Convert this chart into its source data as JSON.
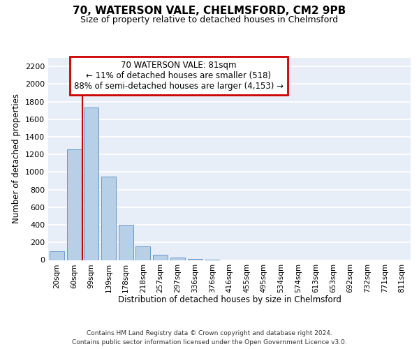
{
  "title": "70, WATERSON VALE, CHELMSFORD, CM2 9PB",
  "subtitle": "Size of property relative to detached houses in Chelmsford",
  "xlabel": "Distribution of detached houses by size in Chelmsford",
  "ylabel": "Number of detached properties",
  "categories": [
    "20sqm",
    "60sqm",
    "99sqm",
    "139sqm",
    "178sqm",
    "218sqm",
    "257sqm",
    "297sqm",
    "336sqm",
    "376sqm",
    "416sqm",
    "455sqm",
    "495sqm",
    "534sqm",
    "574sqm",
    "613sqm",
    "653sqm",
    "692sqm",
    "732sqm",
    "771sqm",
    "811sqm"
  ],
  "values": [
    100,
    1255,
    1730,
    950,
    400,
    155,
    60,
    30,
    15,
    5,
    0,
    0,
    0,
    0,
    0,
    0,
    0,
    0,
    0,
    0,
    0
  ],
  "bar_color": "#b8cfe8",
  "bar_edge_color": "#6699cc",
  "vline_x": 1.5,
  "vline_color": "#cc0000",
  "property_label": "70 WATERSON VALE: 81sqm",
  "annotation_line1": "← 11% of detached houses are smaller (518)",
  "annotation_line2": "88% of semi-detached houses are larger (4,153) →",
  "annotation_box_facecolor": "#ffffff",
  "annotation_box_edgecolor": "#cc0000",
  "ylim": [
    0,
    2300
  ],
  "yticks": [
    0,
    200,
    400,
    600,
    800,
    1000,
    1200,
    1400,
    1600,
    1800,
    2000,
    2200
  ],
  "plot_bg_color": "#e8eef8",
  "grid_color": "#ffffff",
  "footer_line1": "Contains HM Land Registry data © Crown copyright and database right 2024.",
  "footer_line2": "Contains public sector information licensed under the Open Government Licence v3.0."
}
